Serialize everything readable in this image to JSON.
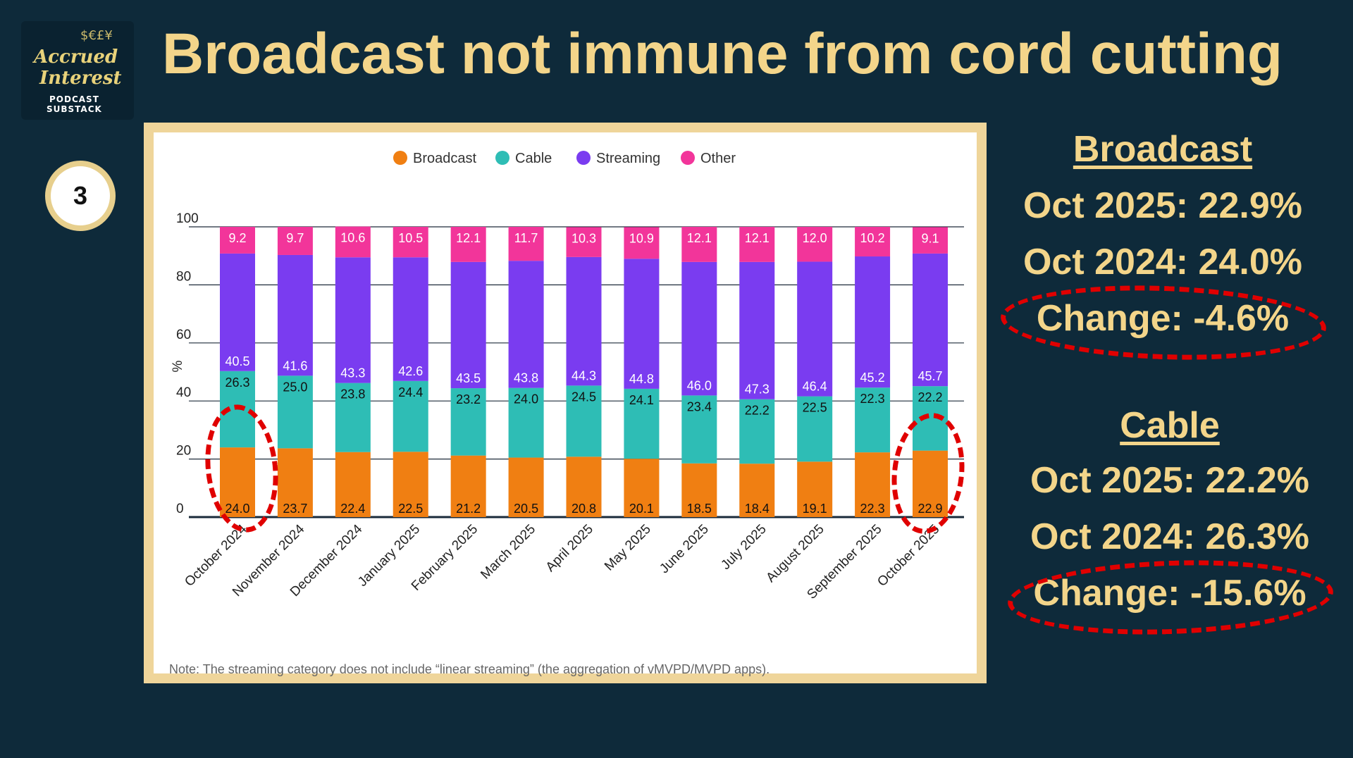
{
  "logo": {
    "line1": "Accrued",
    "line2": "Interest",
    "line3": "PODCAST",
    "line4": "SUBSTACK",
    "symbols": "$€£¥"
  },
  "title": "Broadcast not immune from cord cutting",
  "step": "3",
  "note": "Note: The streaming category does not include “linear streaming” (the aggregation of vMVPD/MVPD apps).",
  "broadcast_panel": {
    "header": "Broadcast",
    "oct2025": "Oct 2025: 22.9%",
    "oct2024": "Oct 2024: 24.0%",
    "change": "Change: -4.6%"
  },
  "cable_panel": {
    "header": "Cable",
    "oct2025": "Oct 2025: 22.2%",
    "oct2024": "Oct 2024: 26.3%",
    "change": "Change: -15.6%"
  },
  "colors": {
    "broadcast": "#f07f12",
    "cable": "#2ebdb5",
    "streaming": "#7a3cf0",
    "other": "#f2359a",
    "accent": "#f3d58a",
    "highlight": "#e00000"
  },
  "chart_data": {
    "type": "bar",
    "stacked": true,
    "ylabel": "%",
    "ylim": [
      0,
      100
    ],
    "yticks": [
      0,
      20,
      40,
      60,
      80,
      100
    ],
    "categories": [
      "October 2024",
      "November 2024",
      "December 2024",
      "January 2025",
      "February 2025",
      "March 2025",
      "April 2025",
      "May 2025",
      "June 2025",
      "July 2025",
      "August 2025",
      "September 2025",
      "October 2025"
    ],
    "series": [
      {
        "name": "Broadcast",
        "color": "#f07f12",
        "values": [
          24.0,
          23.7,
          22.4,
          22.5,
          21.2,
          20.5,
          20.8,
          20.1,
          18.5,
          18.4,
          19.1,
          22.3,
          22.9
        ]
      },
      {
        "name": "Cable",
        "color": "#2ebdb5",
        "values": [
          26.3,
          25.0,
          23.8,
          24.4,
          23.2,
          24.0,
          24.5,
          24.1,
          23.4,
          22.2,
          22.5,
          22.3,
          22.2
        ]
      },
      {
        "name": "Streaming",
        "color": "#7a3cf0",
        "values": [
          40.5,
          41.6,
          43.3,
          42.6,
          43.5,
          43.8,
          44.3,
          44.8,
          46.0,
          47.3,
          46.4,
          45.2,
          45.7
        ]
      },
      {
        "name": "Other",
        "color": "#f2359a",
        "values": [
          9.2,
          9.7,
          10.6,
          10.5,
          12.1,
          11.7,
          10.3,
          10.9,
          12.1,
          12.1,
          12.0,
          10.2,
          9.1
        ]
      }
    ],
    "legend_position": "top-center",
    "grid": true
  }
}
